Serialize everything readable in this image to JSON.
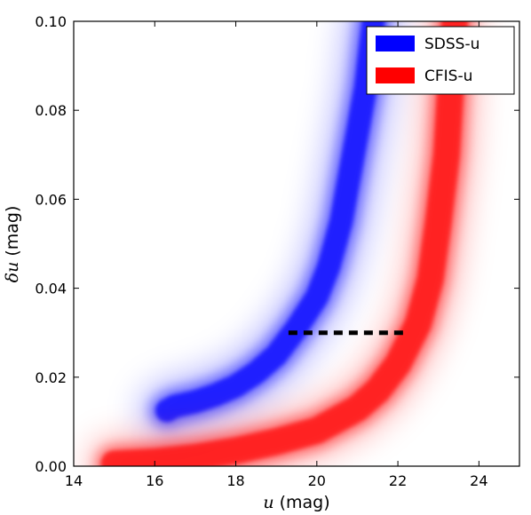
{
  "chart_data": {
    "type": "heatmap",
    "title": "",
    "xlabel_symbol": "u",
    "xlabel_unit": " (mag)",
    "ylabel_symbol": "δu",
    "ylabel_unit": " (mag)",
    "xlim": [
      14,
      25
    ],
    "ylim": [
      0.0,
      0.1
    ],
    "x_ticks": [
      14,
      16,
      18,
      20,
      22,
      24
    ],
    "x_tick_labels": [
      "14",
      "16",
      "18",
      "20",
      "22",
      "24"
    ],
    "y_ticks": [
      0.0,
      0.02,
      0.04,
      0.06,
      0.08,
      0.1
    ],
    "y_tick_labels": [
      "0.00",
      "0.02",
      "0.04",
      "0.06",
      "0.08",
      "0.10"
    ],
    "grid": false,
    "legend_position": "top-right",
    "series": [
      {
        "name": "SDSS-u",
        "color": "#0000ff",
        "band_center": [
          {
            "u": 16.3,
            "du": 0.0125
          },
          {
            "u": 16.5,
            "du": 0.0135
          },
          {
            "u": 17.0,
            "du": 0.0145
          },
          {
            "u": 17.5,
            "du": 0.016
          },
          {
            "u": 18.0,
            "du": 0.018
          },
          {
            "u": 18.5,
            "du": 0.021
          },
          {
            "u": 19.0,
            "du": 0.025
          },
          {
            "u": 19.5,
            "du": 0.031
          },
          {
            "u": 20.0,
            "du": 0.038
          },
          {
            "u": 20.3,
            "du": 0.045
          },
          {
            "u": 20.6,
            "du": 0.055
          },
          {
            "u": 20.8,
            "du": 0.065
          },
          {
            "u": 21.0,
            "du": 0.075
          },
          {
            "u": 21.2,
            "du": 0.085
          },
          {
            "u": 21.4,
            "du": 0.1
          }
        ]
      },
      {
        "name": "CFIS-u",
        "color": "#ff0000",
        "band_center": [
          {
            "u": 15.0,
            "du": 0.0005
          },
          {
            "u": 16.0,
            "du": 0.001
          },
          {
            "u": 17.0,
            "du": 0.002
          },
          {
            "u": 18.0,
            "du": 0.0035
          },
          {
            "u": 19.0,
            "du": 0.0055
          },
          {
            "u": 20.0,
            "du": 0.008
          },
          {
            "u": 21.0,
            "du": 0.013
          },
          {
            "u": 21.5,
            "du": 0.017
          },
          {
            "u": 22.0,
            "du": 0.023
          },
          {
            "u": 22.5,
            "du": 0.032
          },
          {
            "u": 22.8,
            "du": 0.042
          },
          {
            "u": 23.0,
            "du": 0.055
          },
          {
            "u": 23.2,
            "du": 0.07
          },
          {
            "u": 23.3,
            "du": 0.085
          },
          {
            "u": 23.4,
            "du": 0.1
          }
        ]
      }
    ],
    "reference_line": {
      "style": "dashed",
      "color": "#000000",
      "x_start": 19.3,
      "x_end": 22.2,
      "y": 0.03
    }
  }
}
